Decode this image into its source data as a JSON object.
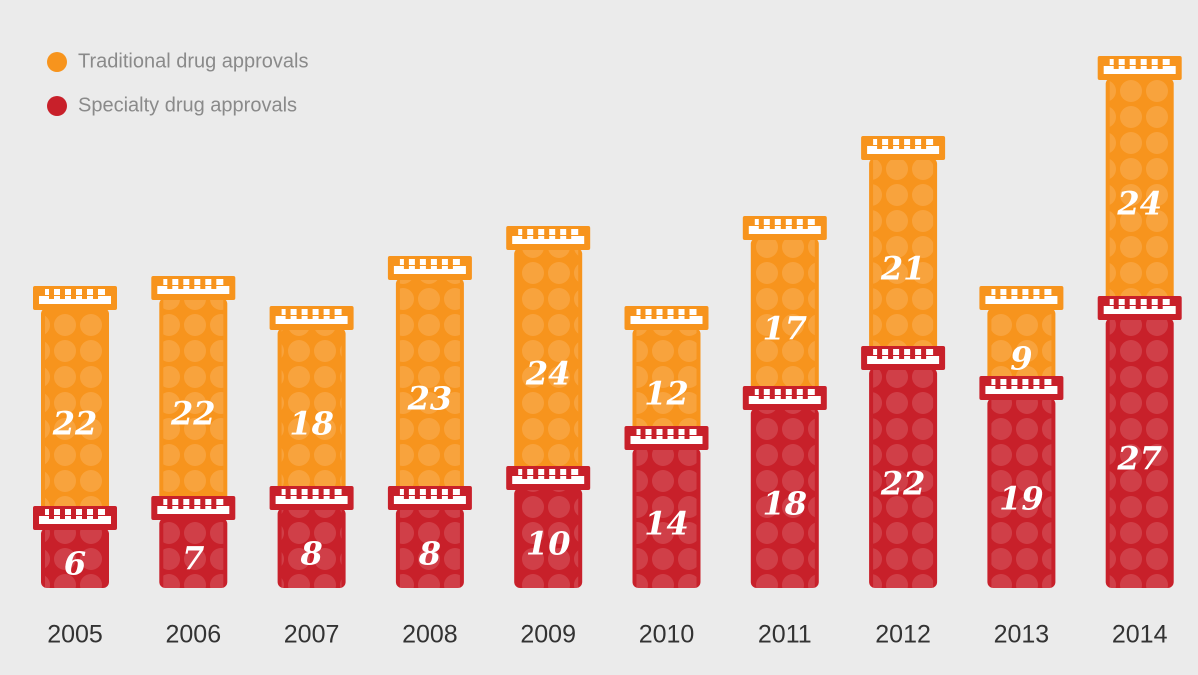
{
  "chart_data": {
    "type": "bar",
    "stacked": true,
    "categories": [
      "2005",
      "2006",
      "2007",
      "2008",
      "2009",
      "2010",
      "2011",
      "2012",
      "2013",
      "2014"
    ],
    "series": [
      {
        "name": "Traditional drug approvals",
        "color": "#f7941d",
        "values": [
          22,
          22,
          18,
          23,
          24,
          12,
          17,
          21,
          9,
          24
        ]
      },
      {
        "name": "Specialty drug approvals",
        "color": "#c8202a",
        "values": [
          6,
          7,
          8,
          8,
          10,
          14,
          18,
          22,
          19,
          27
        ]
      }
    ]
  }
}
